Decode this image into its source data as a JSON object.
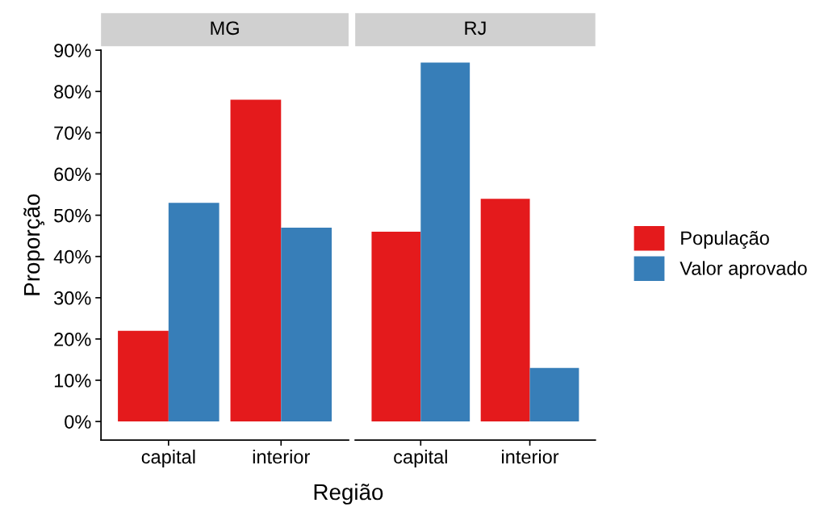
{
  "chart_data": [
    {
      "type": "bar",
      "title": "MG",
      "xlabel": "Região",
      "ylabel": "Proporção",
      "categories": [
        "capital",
        "interior"
      ],
      "series": [
        {
          "name": "População",
          "color": "#e41a1c",
          "values": [
            22,
            78
          ]
        },
        {
          "name": "Valor aprovado",
          "color": "#377eb8",
          "values": [
            53,
            47
          ]
        }
      ],
      "ylim": [
        -4.5,
        90
      ],
      "yticks": [
        {
          "value": 0,
          "label": "0%"
        },
        {
          "value": 10,
          "label": "10%"
        },
        {
          "value": 20,
          "label": "20%"
        },
        {
          "value": 30,
          "label": "30%"
        },
        {
          "value": 40,
          "label": "40%"
        },
        {
          "value": 50,
          "label": "50%"
        },
        {
          "value": 60,
          "label": "60%"
        },
        {
          "value": 70,
          "label": "70%"
        },
        {
          "value": 80,
          "label": "80%"
        },
        {
          "value": 90,
          "label": "90%"
        }
      ],
      "grid": false,
      "legend": "right"
    },
    {
      "type": "bar",
      "title": "RJ",
      "categories": [
        "capital",
        "interior"
      ],
      "series": [
        {
          "color": "#e41a1c",
          "values": [
            46,
            54
          ]
        },
        {
          "color": "#377eb8",
          "values": [
            87,
            13
          ]
        }
      ],
      "ylim": [
        -4.5,
        90
      ],
      "tick_labels": "x",
      "grid": false
    }
  ]
}
